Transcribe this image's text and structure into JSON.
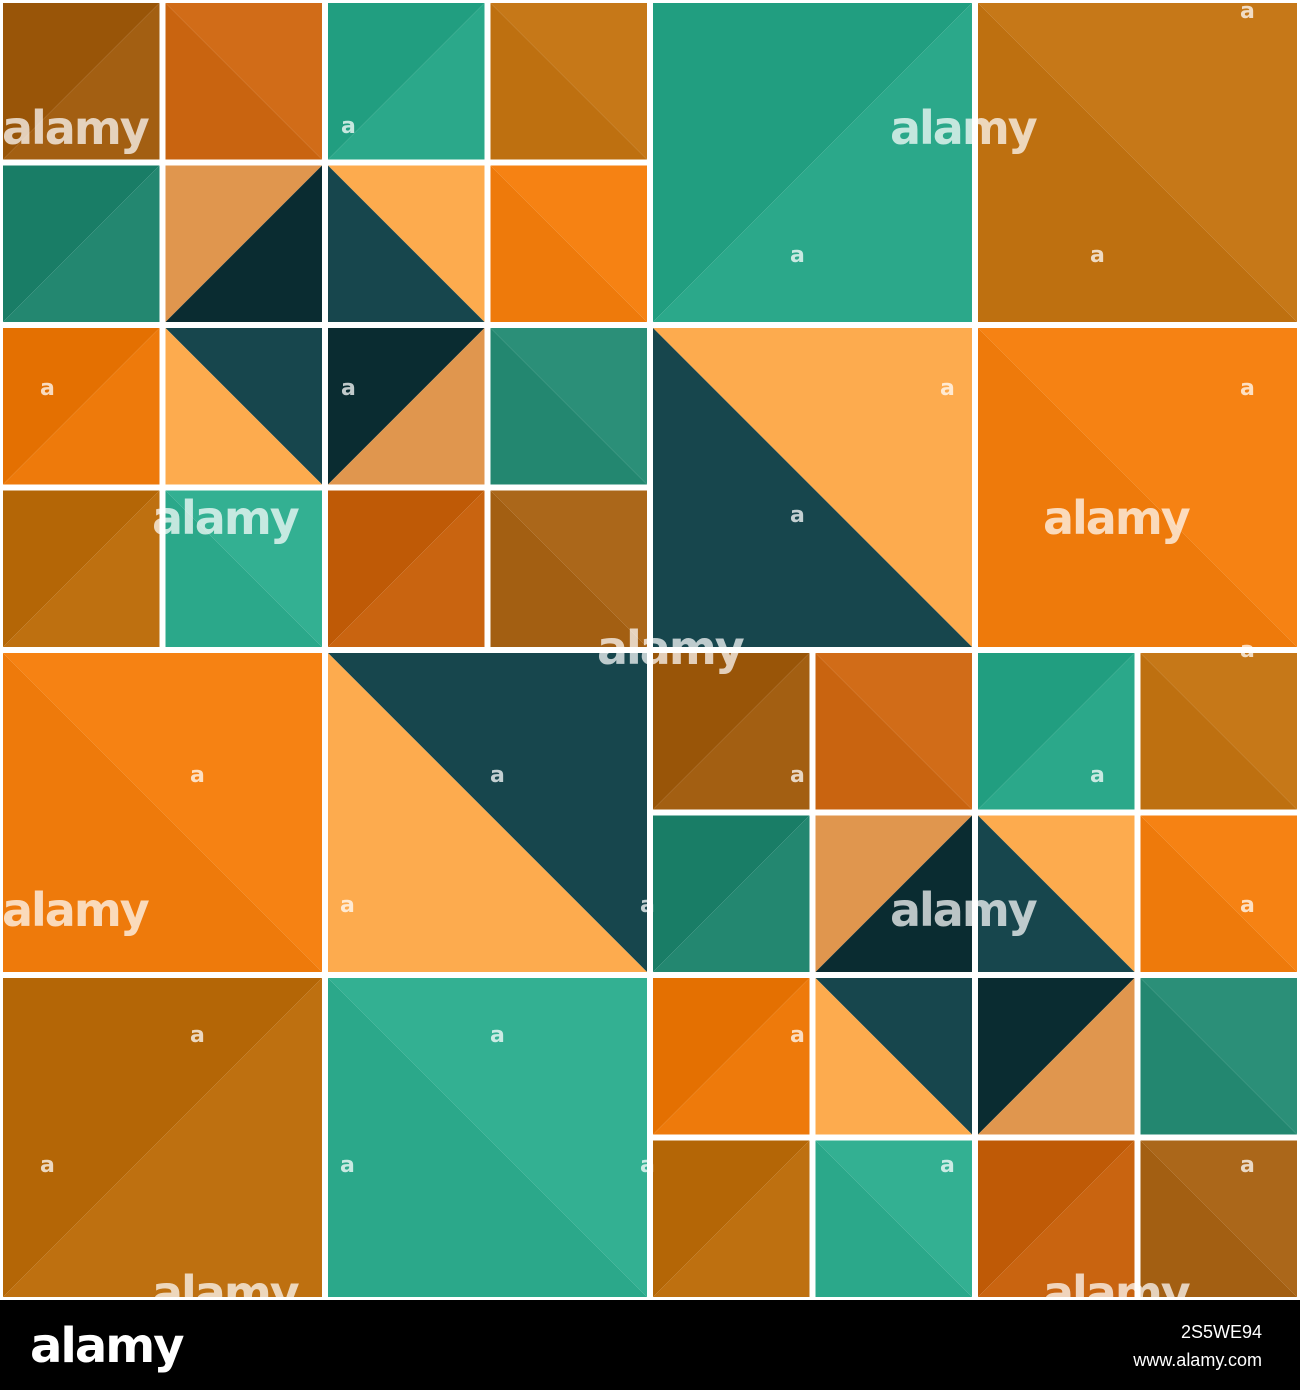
{
  "palette": {
    "teal": "#2ba88a",
    "teal_dark": "#238770",
    "orange": "#ee7a0b",
    "orange_burnt": "#c96410",
    "amber": "#be7010",
    "ochre": "#a35f12",
    "peach": "#fdab4e",
    "tan": "#e0964e",
    "navy": "#17464d",
    "navy_dark": "#0a2c31",
    "gap": "#ffffff",
    "footer_bg": "#000000"
  },
  "watermark": {
    "word": "alamy",
    "mark": "a"
  },
  "footer": {
    "logo": "alamy",
    "image_id": "2S5WE94",
    "url": "www.alamy.com"
  }
}
